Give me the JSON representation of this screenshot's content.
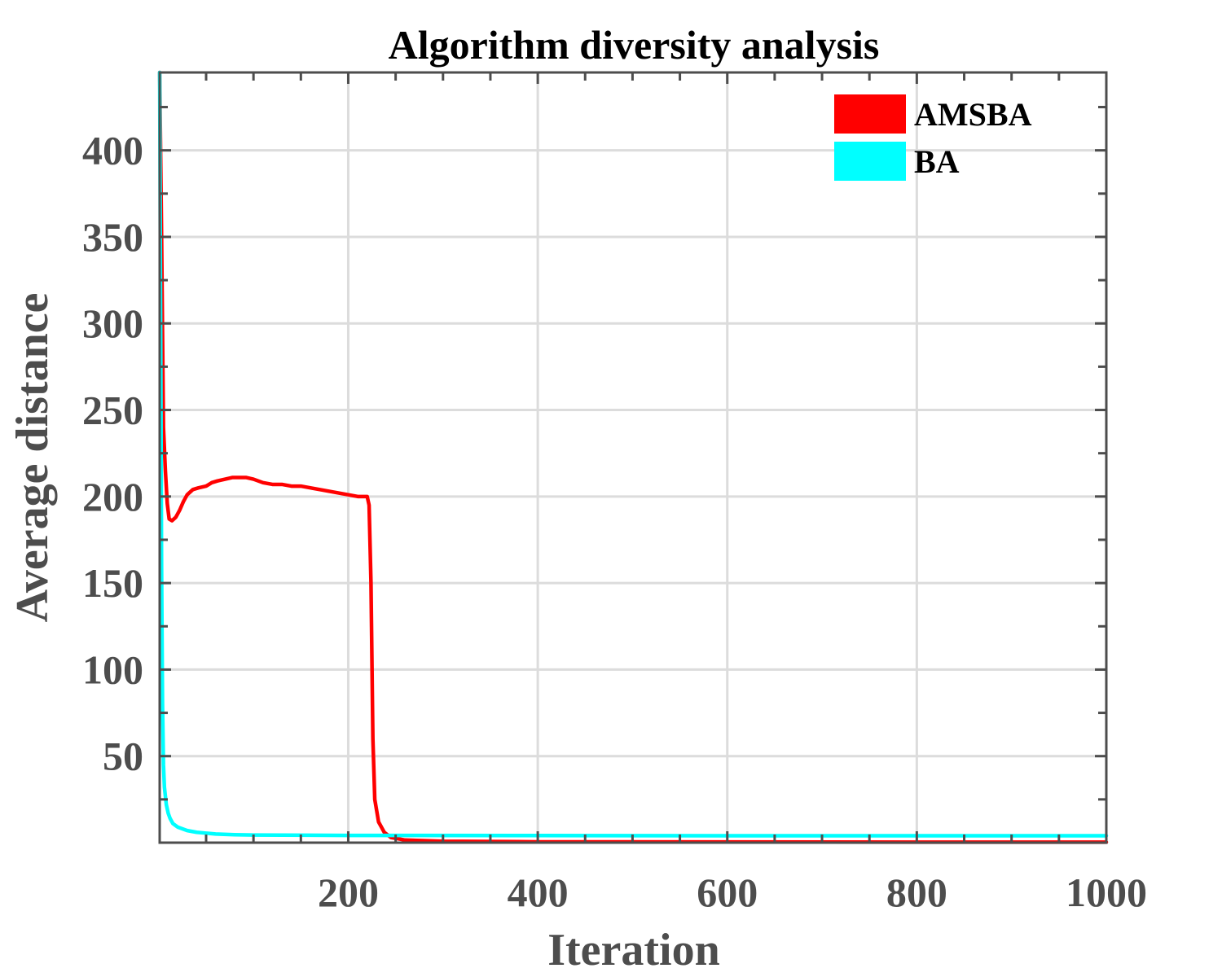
{
  "chart_data": {
    "type": "line",
    "title": "Algorithm diversity analysis",
    "xlabel": "Iteration",
    "ylabel": "Average distance",
    "xlim": [
      1,
      1000
    ],
    "ylim": [
      0,
      445
    ],
    "xticks": [
      200,
      400,
      600,
      800,
      1000
    ],
    "yticks": [
      50,
      100,
      150,
      200,
      250,
      300,
      350,
      400
    ],
    "grid": true,
    "legend": "top-right",
    "series": [
      {
        "name": "AMSBA",
        "color": "#ff0000",
        "points": [
          [
            1,
            445
          ],
          [
            3,
            350
          ],
          [
            5,
            240
          ],
          [
            7,
            215
          ],
          [
            9,
            196
          ],
          [
            11,
            187
          ],
          [
            14,
            186
          ],
          [
            18,
            188
          ],
          [
            22,
            192
          ],
          [
            26,
            197
          ],
          [
            30,
            201
          ],
          [
            36,
            204
          ],
          [
            42,
            205
          ],
          [
            50,
            206
          ],
          [
            56,
            208
          ],
          [
            62,
            209
          ],
          [
            70,
            210
          ],
          [
            78,
            211
          ],
          [
            86,
            211
          ],
          [
            92,
            211
          ],
          [
            100,
            210
          ],
          [
            110,
            208
          ],
          [
            120,
            207
          ],
          [
            130,
            207
          ],
          [
            140,
            206
          ],
          [
            150,
            206
          ],
          [
            160,
            205
          ],
          [
            170,
            204
          ],
          [
            180,
            203
          ],
          [
            190,
            202
          ],
          [
            200,
            201
          ],
          [
            210,
            200
          ],
          [
            220,
            200
          ],
          [
            222,
            195
          ],
          [
            224,
            150
          ],
          [
            226,
            60
          ],
          [
            228,
            25
          ],
          [
            232,
            12
          ],
          [
            238,
            6
          ],
          [
            245,
            3
          ],
          [
            260,
            1.5
          ],
          [
            300,
            0.8
          ],
          [
            400,
            0.5
          ],
          [
            600,
            0.4
          ],
          [
            800,
            0.3
          ],
          [
            1000,
            0.3
          ]
        ]
      },
      {
        "name": "BA",
        "color": "#00ffff",
        "points": [
          [
            1,
            445
          ],
          [
            2,
            300
          ],
          [
            3,
            160
          ],
          [
            4,
            80
          ],
          [
            5,
            45
          ],
          [
            6,
            32
          ],
          [
            8,
            22
          ],
          [
            10,
            17
          ],
          [
            12,
            14
          ],
          [
            15,
            11
          ],
          [
            20,
            9
          ],
          [
            25,
            8
          ],
          [
            30,
            7
          ],
          [
            40,
            6
          ],
          [
            50,
            5.5
          ],
          [
            60,
            5
          ],
          [
            80,
            4.6
          ],
          [
            100,
            4.4
          ],
          [
            200,
            4.2
          ],
          [
            400,
            4.1
          ],
          [
            600,
            4
          ],
          [
            800,
            4
          ],
          [
            1000,
            4
          ]
        ]
      }
    ]
  }
}
